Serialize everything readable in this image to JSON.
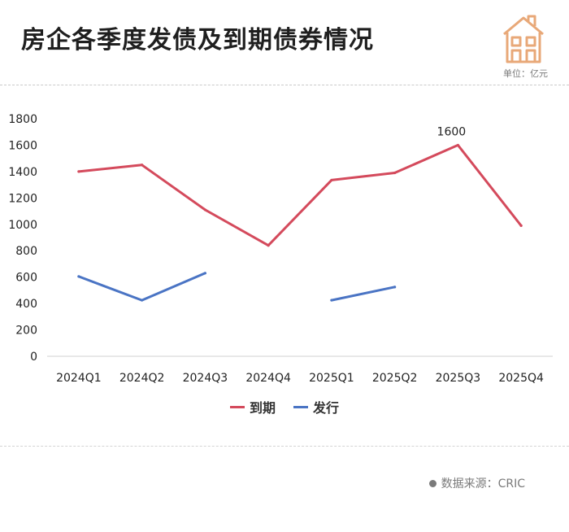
{
  "header": {
    "title": "房企各季度发债及到期债券情况",
    "unit": "单位：亿元"
  },
  "footer": {
    "source": "数据来源：CRIC"
  },
  "colors": {
    "maturity": "#d44a5c",
    "issuance": "#4a74c4",
    "logo": "#e8a878"
  },
  "chart_data": {
    "type": "line",
    "categories": [
      "2024Q1",
      "2024Q2",
      "2024Q3",
      "2024Q4",
      "2025Q1",
      "2025Q2",
      "2025Q3",
      "2025Q4"
    ],
    "series": [
      {
        "name": "到期",
        "values": [
          1400,
          1450,
          1110,
          840,
          1335,
          1390,
          1600,
          990
        ]
      },
      {
        "name": "发行",
        "values": [
          605,
          425,
          630,
          null,
          425,
          525,
          null,
          null
        ]
      }
    ],
    "ylim": [
      0,
      1800
    ],
    "yticks": [
      0,
      200,
      400,
      600,
      800,
      1000,
      1200,
      1400,
      1600,
      1800
    ],
    "annotations": [
      {
        "series": 0,
        "index": 6,
        "text": "1600"
      }
    ],
    "grid": false,
    "legend": "bottom"
  }
}
